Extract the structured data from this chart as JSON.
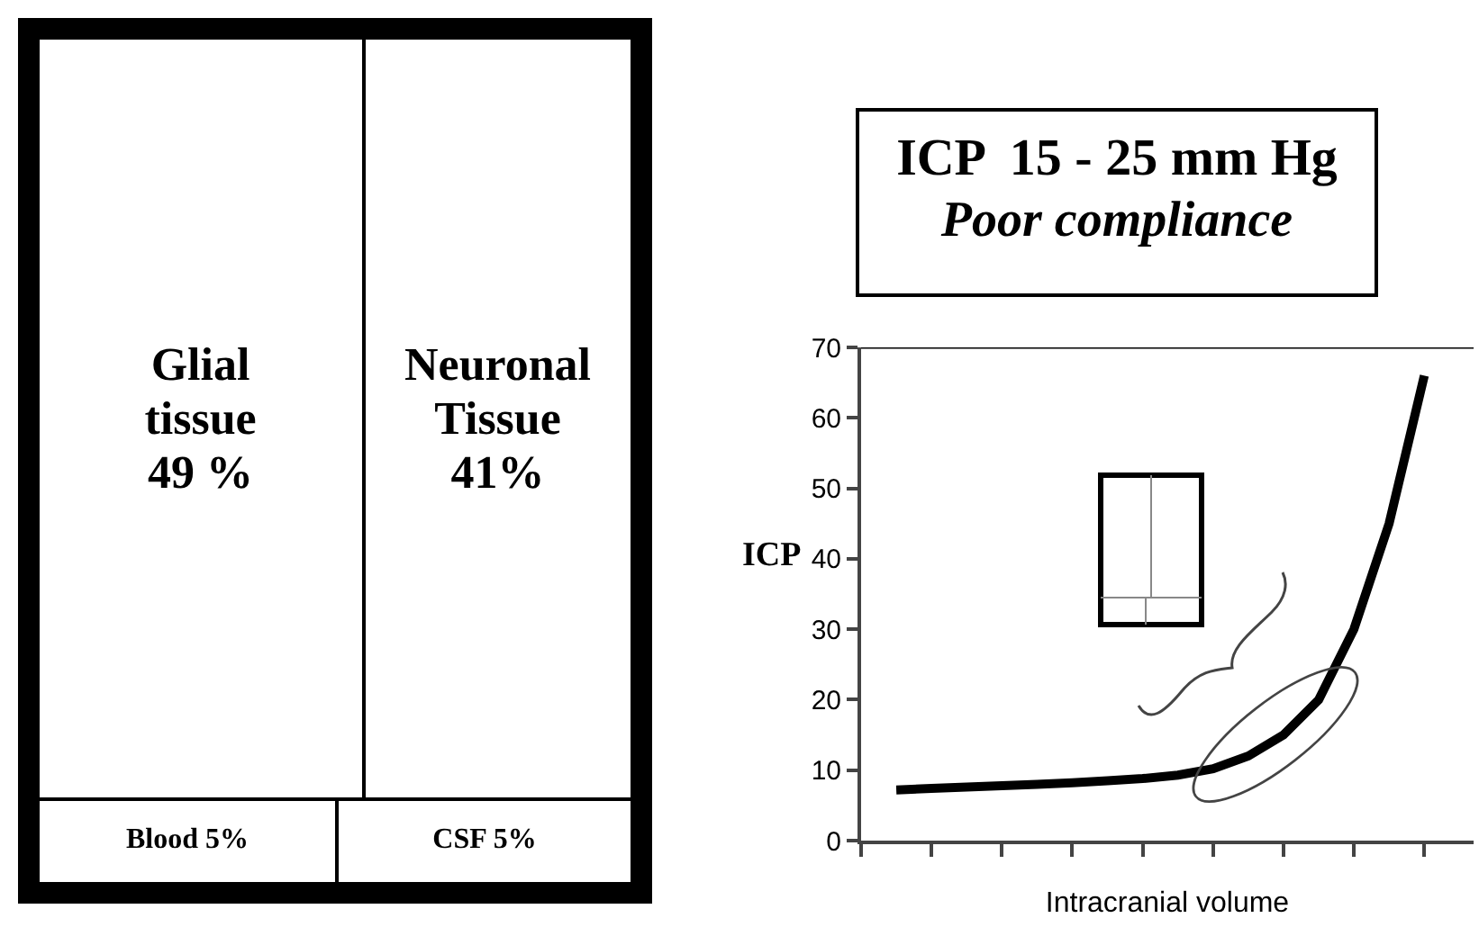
{
  "chart_data": [
    {
      "type": "other",
      "categories": [
        "Glial tissue",
        "Neuronal Tissue",
        "Blood",
        "CSF"
      ],
      "values": [
        49,
        41,
        5,
        5
      ],
      "value_labels": [
        "49 %",
        "41%",
        "5%",
        "5%"
      ]
    },
    {
      "type": "line",
      "title": "ICP  15 - 25 mm Hg",
      "subtitle": "Poor compliance",
      "xlabel": "Intracranial volume",
      "ylabel": "ICP",
      "categories": [
        null,
        null,
        null,
        null,
        null,
        null,
        null,
        null,
        null,
        null,
        null,
        null,
        null,
        null,
        null,
        null
      ],
      "series": [
        {
          "color": "#000000",
          "values": [
            7.2,
            7.4,
            7.6,
            7.8,
            8.0,
            8.2,
            8.5,
            8.8,
            9.3,
            10.2,
            12,
            15,
            20,
            30,
            45,
            66
          ]
        }
      ],
      "ylim": [
        0,
        70
      ],
      "yticks": [
        0,
        10,
        20,
        30,
        40,
        50,
        60,
        70
      ]
    }
  ]
}
